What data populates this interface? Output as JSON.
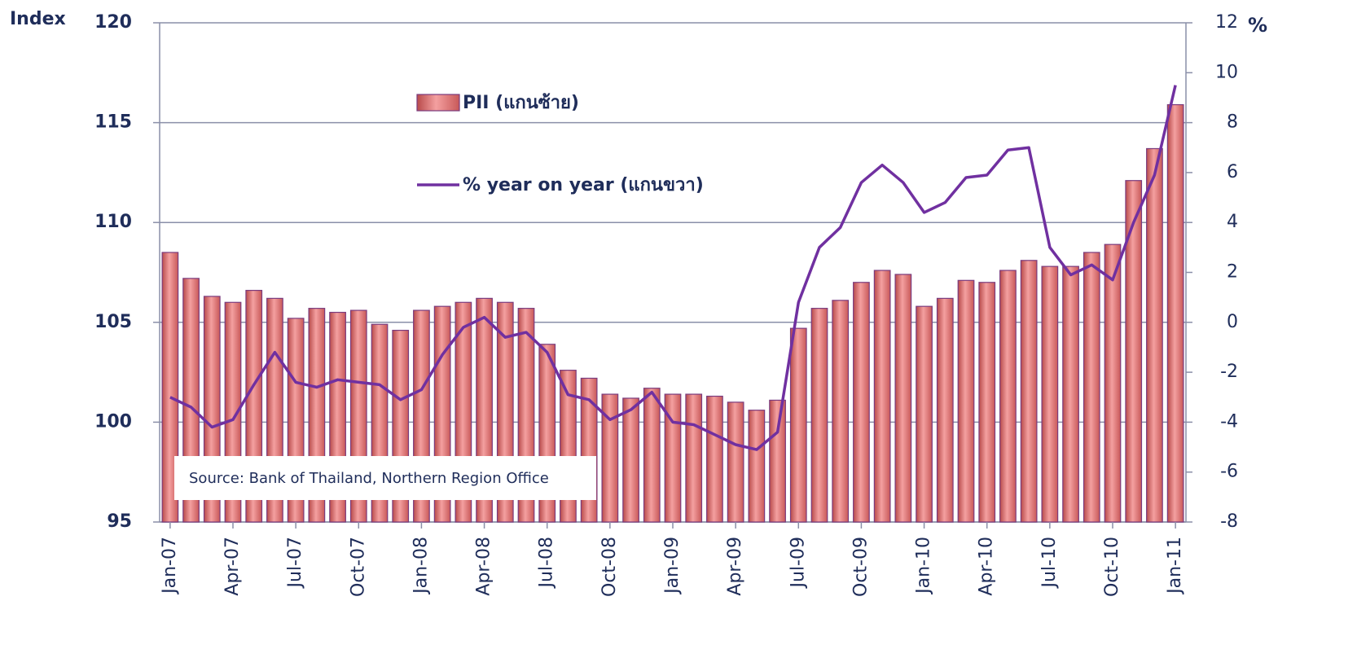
{
  "chart_data": {
    "type": "bar_line",
    "annotation": "Source: Bank of Thailand, Northern Region Office",
    "y_label": "Index",
    "y2_label": "%",
    "categories": [
      "Jan-07",
      null,
      null,
      "Apr-07",
      null,
      null,
      "Jul-07",
      null,
      null,
      "Oct-07",
      null,
      null,
      "Jan-08",
      null,
      null,
      "Apr-08",
      null,
      null,
      "Jul-08",
      null,
      null,
      "Oct-08",
      null,
      null,
      "Jan-09",
      null,
      null,
      "Apr-09",
      null,
      null,
      "Jul-09",
      null,
      null,
      "Oct-09",
      null,
      null,
      "Jan-10",
      null,
      null,
      "Apr-10",
      null,
      null,
      "Jul-10",
      null,
      null,
      "Oct-10",
      null,
      null,
      "Jan-11"
    ],
    "series": [
      {
        "name": "PII (แกนซ้าย)",
        "type": "bar",
        "color": "#e8706f",
        "values": [
          108.5,
          107.2,
          106.3,
          106.0,
          106.6,
          106.2,
          105.2,
          105.7,
          105.5,
          105.6,
          104.9,
          104.6,
          105.6,
          105.8,
          106.0,
          106.2,
          106.0,
          105.7,
          103.9,
          102.6,
          102.2,
          101.4,
          101.2,
          101.7,
          101.4,
          101.4,
          101.3,
          101.0,
          100.6,
          101.1,
          104.7,
          105.7,
          106.1,
          107.0,
          107.6,
          107.4,
          105.8,
          106.2,
          107.1,
          107.0,
          107.6,
          108.1,
          107.8,
          107.8,
          108.5,
          108.9,
          112.1,
          113.7,
          115.9
        ]
      },
      {
        "name": "% year on year (แกนขวา)",
        "type": "line",
        "axis": "y2",
        "color": "#7030a0",
        "values": [
          -3.0,
          -3.4,
          -4.2,
          -3.9,
          -2.5,
          -1.2,
          -2.4,
          -2.6,
          -2.3,
          -2.4,
          -2.5,
          -3.1,
          -2.7,
          -1.3,
          -0.2,
          0.2,
          -0.6,
          -0.4,
          -1.2,
          -2.9,
          -3.1,
          -3.9,
          -3.5,
          -2.8,
          -4.0,
          -4.1,
          -4.5,
          -4.9,
          -5.1,
          -4.4,
          0.8,
          3.0,
          3.8,
          5.6,
          6.3,
          5.6,
          4.4,
          4.8,
          5.8,
          5.9,
          6.9,
          7.0,
          3.0,
          1.9,
          2.3,
          1.7,
          4.0,
          5.9,
          9.5
        ]
      }
    ],
    "ylim": [
      95,
      120
    ],
    "yticks": [
      95,
      100,
      105,
      110,
      115,
      120
    ],
    "y2lim": [
      -8,
      12
    ],
    "y2ticks": [
      -8,
      -6,
      -4,
      -2,
      0,
      2,
      4,
      6,
      8,
      10,
      12
    ],
    "grid": true
  }
}
